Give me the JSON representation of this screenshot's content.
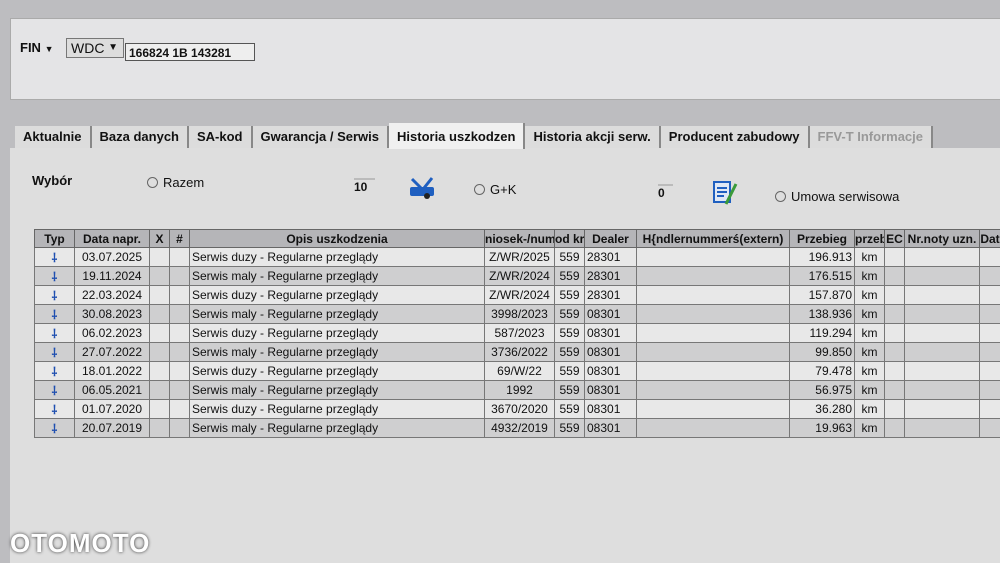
{
  "header": {
    "fin_label": "FIN",
    "prefix": "WDC",
    "fin_value": "166824 1B 143281"
  },
  "tabs": [
    {
      "label": "Aktualnie",
      "state": "normal"
    },
    {
      "label": "Baza danych",
      "state": "normal"
    },
    {
      "label": "SA-kod",
      "state": "normal"
    },
    {
      "label": "Gwarancja / Serwis",
      "state": "normal"
    },
    {
      "label": "Historia uszkodzen",
      "state": "active"
    },
    {
      "label": "Historia akcji serw.",
      "state": "normal"
    },
    {
      "label": "Producent zabudowy",
      "state": "normal"
    },
    {
      "label": "FFV-T Informacje",
      "state": "disabled"
    }
  ],
  "filter": {
    "label": "Wybór",
    "razem": "Razem",
    "razem_count": "10",
    "gk": "G+K",
    "gk_count": "0",
    "umowa": "Umowa serwisowa"
  },
  "table": {
    "columns": [
      "Typ",
      "Data napr.",
      "X",
      "#",
      "Opis uszkodzenia",
      "niosek-/num",
      "od kr.",
      "Dealer",
      "H{ndlernummerś(extern)",
      "Przebieg",
      "przeb",
      "EC",
      "Nr.noty uzn.",
      "Dat"
    ],
    "rows": [
      {
        "date": "03.07.2025",
        "desc": "Serwis duzy - Regularne przeglądy",
        "num": "Z/WR/2025",
        "kod": "559",
        "dealer": "28301",
        "km": "196.913",
        "unit": "km"
      },
      {
        "date": "19.11.2024",
        "desc": "Serwis maly - Regularne przeglądy",
        "num": "Z/WR/2024",
        "kod": "559",
        "dealer": "28301",
        "km": "176.515",
        "unit": "km"
      },
      {
        "date": "22.03.2024",
        "desc": "Serwis duzy - Regularne przeglądy",
        "num": "Z/WR/2024",
        "kod": "559",
        "dealer": "28301",
        "km": "157.870",
        "unit": "km"
      },
      {
        "date": "30.08.2023",
        "desc": "Serwis maly - Regularne przeglądy",
        "num": "3998/2023",
        "kod": "559",
        "dealer": "08301",
        "km": "138.936",
        "unit": "km"
      },
      {
        "date": "06.02.2023",
        "desc": "Serwis duzy - Regularne przeglądy",
        "num": "587/2023",
        "kod": "559",
        "dealer": "08301",
        "km": "119.294",
        "unit": "km"
      },
      {
        "date": "27.07.2022",
        "desc": "Serwis maly - Regularne przeglądy",
        "num": "3736/2022",
        "kod": "559",
        "dealer": "08301",
        "km": "99.850",
        "unit": "km"
      },
      {
        "date": "18.01.2022",
        "desc": "Serwis duzy - Regularne przeglądy",
        "num": "69/W/22",
        "kod": "559",
        "dealer": "08301",
        "km": "79.478",
        "unit": "km"
      },
      {
        "date": "06.05.2021",
        "desc": "Serwis maly - Regularne przeglądy",
        "num": "1992",
        "kod": "559",
        "dealer": "08301",
        "km": "56.975",
        "unit": "km"
      },
      {
        "date": "01.07.2020",
        "desc": "Serwis duzy - Regularne przeglądy",
        "num": "3670/2020",
        "kod": "559",
        "dealer": "08301",
        "km": "36.280",
        "unit": "km"
      },
      {
        "date": "20.07.2019",
        "desc": "Serwis maly - Regularne przeglądy",
        "num": "4932/2019",
        "kod": "559",
        "dealer": "08301",
        "km": "19.963",
        "unit": "km"
      }
    ]
  },
  "watermark": "OTOMOTO",
  "colors": {
    "icon_blue": "#1f5fc0",
    "icon_green": "#3a9a3a"
  }
}
